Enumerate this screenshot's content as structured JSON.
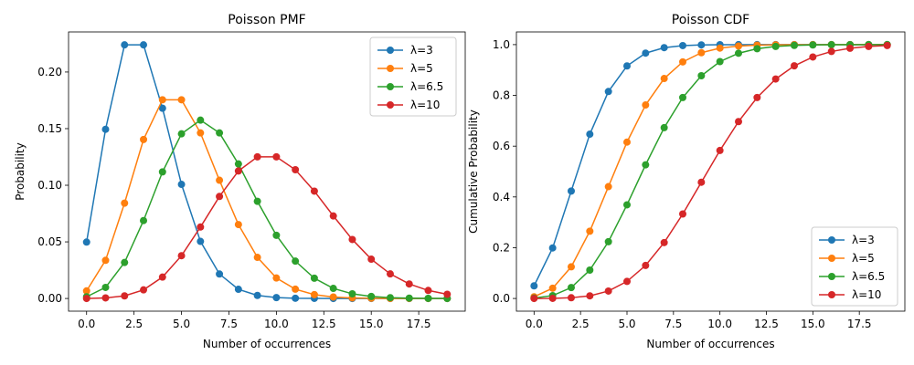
{
  "chart_data": [
    {
      "type": "line",
      "title": "Poisson PMF",
      "xlabel": "Number of occurrences",
      "ylabel": "Probability",
      "xlim": [
        -0.95,
        19.95
      ],
      "ylim": [
        -0.0112,
        0.2354
      ],
      "xticks": [
        0.0,
        2.5,
        5.0,
        7.5,
        10.0,
        12.5,
        15.0,
        17.5
      ],
      "xtick_labels": [
        "0.0",
        "2.5",
        "5.0",
        "7.5",
        "10.0",
        "12.5",
        "15.0",
        "17.5"
      ],
      "yticks": [
        0.0,
        0.05,
        0.1,
        0.15,
        0.2
      ],
      "ytick_labels": [
        "0.00",
        "0.05",
        "0.10",
        "0.15",
        "0.20"
      ],
      "legend_position": "upper right",
      "grid": false,
      "x": [
        0,
        1,
        2,
        3,
        4,
        5,
        6,
        7,
        8,
        9,
        10,
        11,
        12,
        13,
        14,
        15,
        16,
        17,
        18,
        19
      ],
      "series": [
        {
          "name": "λ=3",
          "color": "#1f77b4",
          "values": [
            0.0498,
            0.1494,
            0.224,
            0.224,
            0.168,
            0.1008,
            0.0504,
            0.0216,
            0.0081,
            0.0027,
            0.0008,
            0.0002,
            0.0001,
            0.0,
            0.0,
            0.0,
            0.0,
            0.0,
            0.0,
            0.0
          ]
        },
        {
          "name": "λ=5",
          "color": "#ff7f0e",
          "values": [
            0.0067,
            0.0337,
            0.0842,
            0.1404,
            0.1755,
            0.1755,
            0.1462,
            0.1044,
            0.0653,
            0.0363,
            0.0181,
            0.0082,
            0.0034,
            0.0013,
            0.0005,
            0.0002,
            0.0,
            0.0,
            0.0,
            0.0
          ]
        },
        {
          "name": "λ=6.5",
          "color": "#2ca02c",
          "values": [
            0.0015,
            0.0098,
            0.0318,
            0.0688,
            0.1118,
            0.1454,
            0.1575,
            0.1462,
            0.1188,
            0.0858,
            0.0558,
            0.033,
            0.0179,
            0.0089,
            0.0041,
            0.0018,
            0.0007,
            0.0003,
            0.0001,
            0.0
          ]
        },
        {
          "name": "λ=10",
          "color": "#d62728",
          "values": [
            0.0,
            0.0005,
            0.0023,
            0.0076,
            0.0189,
            0.0378,
            0.0631,
            0.0901,
            0.1126,
            0.1251,
            0.1251,
            0.1137,
            0.0948,
            0.0729,
            0.0521,
            0.0347,
            0.0217,
            0.0128,
            0.0071,
            0.0037
          ]
        }
      ]
    },
    {
      "type": "line",
      "title": "Poisson CDF",
      "xlabel": "Number of occurrences",
      "ylabel": "Cumulative Probability",
      "xlim": [
        -0.95,
        19.95
      ],
      "ylim": [
        -0.05,
        1.05
      ],
      "xticks": [
        0.0,
        2.5,
        5.0,
        7.5,
        10.0,
        12.5,
        15.0,
        17.5
      ],
      "xtick_labels": [
        "0.0",
        "2.5",
        "5.0",
        "7.5",
        "10.0",
        "12.5",
        "15.0",
        "17.5"
      ],
      "yticks": [
        0.0,
        0.2,
        0.4,
        0.6,
        0.8,
        1.0
      ],
      "ytick_labels": [
        "0.0",
        "0.2",
        "0.4",
        "0.6",
        "0.8",
        "1.0"
      ],
      "legend_position": "lower right",
      "grid": false,
      "x": [
        0,
        1,
        2,
        3,
        4,
        5,
        6,
        7,
        8,
        9,
        10,
        11,
        12,
        13,
        14,
        15,
        16,
        17,
        18,
        19
      ],
      "series": [
        {
          "name": "λ=3",
          "color": "#1f77b4",
          "values": [
            0.0498,
            0.1991,
            0.4232,
            0.6472,
            0.8153,
            0.9161,
            0.9665,
            0.9881,
            0.9962,
            0.9989,
            0.9997,
            0.9999,
            1.0,
            1.0,
            1.0,
            1.0,
            1.0,
            1.0,
            1.0,
            1.0
          ]
        },
        {
          "name": "λ=5",
          "color": "#ff7f0e",
          "values": [
            0.0067,
            0.0404,
            0.1247,
            0.265,
            0.4405,
            0.616,
            0.7622,
            0.8666,
            0.9319,
            0.9682,
            0.9863,
            0.9945,
            0.998,
            0.9993,
            0.9998,
            0.9999,
            1.0,
            1.0,
            1.0,
            1.0
          ]
        },
        {
          "name": "λ=6.5",
          "color": "#2ca02c",
          "values": [
            0.0015,
            0.0113,
            0.043,
            0.1118,
            0.2237,
            0.369,
            0.5265,
            0.6728,
            0.7916,
            0.8774,
            0.9332,
            0.9661,
            0.984,
            0.9929,
            0.997,
            0.9988,
            0.9996,
            0.9998,
            0.9999,
            1.0
          ]
        },
        {
          "name": "λ=10",
          "color": "#d62728",
          "values": [
            0.0,
            0.0005,
            0.0028,
            0.0103,
            0.0293,
            0.0671,
            0.1301,
            0.2202,
            0.3328,
            0.4579,
            0.583,
            0.6968,
            0.7916,
            0.8645,
            0.9165,
            0.9513,
            0.973,
            0.9857,
            0.9928,
            0.9965
          ]
        }
      ]
    }
  ]
}
